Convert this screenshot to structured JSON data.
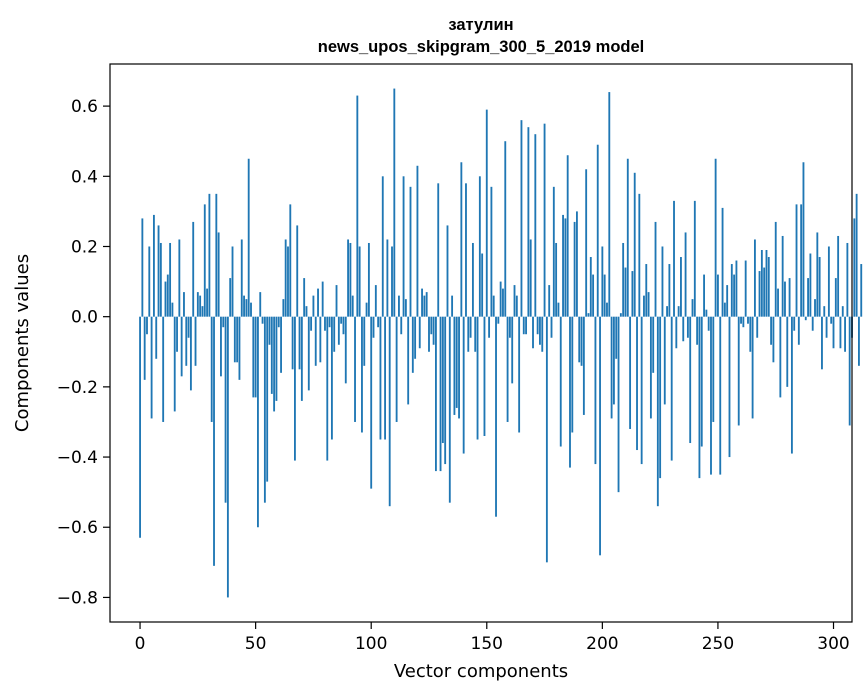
{
  "chart_data": {
    "type": "bar",
    "title_lines": [
      "затулин",
      "news_upos_skipgram_300_5_2019 model"
    ],
    "xlabel": "Vector components",
    "ylabel": "Components values",
    "xlim": [
      -13,
      308
    ],
    "ylim": [
      -0.87,
      0.72
    ],
    "xticks": [
      0,
      50,
      100,
      150,
      200,
      250,
      300
    ],
    "xtick_labels": [
      "0",
      "50",
      "100",
      "150",
      "200",
      "250",
      "300"
    ],
    "yticks": [
      -0.8,
      -0.6,
      -0.4,
      -0.2,
      0.0,
      0.2,
      0.4,
      0.6
    ],
    "ytick_labels": [
      "−0.8",
      "−0.6",
      "−0.4",
      "−0.2",
      "0.0",
      "0.2",
      "0.4",
      "0.6"
    ],
    "bar_color": "#1f77b4",
    "grid": false,
    "values": [
      -0.63,
      0.28,
      -0.18,
      -0.05,
      0.2,
      -0.29,
      0.29,
      -0.12,
      0.26,
      0.21,
      -0.3,
      0.1,
      0.12,
      0.21,
      0.04,
      -0.27,
      -0.1,
      0.22,
      -0.17,
      0.07,
      -0.14,
      -0.06,
      -0.21,
      0.27,
      -0.14,
      0.07,
      0.06,
      0.03,
      0.32,
      0.08,
      0.35,
      -0.3,
      -0.71,
      0.35,
      0.24,
      -0.17,
      -0.03,
      -0.53,
      -0.8,
      0.11,
      0.2,
      -0.13,
      -0.13,
      -0.18,
      0.22,
      0.06,
      0.05,
      0.45,
      0.04,
      -0.23,
      -0.23,
      -0.6,
      0.07,
      -0.02,
      -0.53,
      -0.47,
      -0.08,
      -0.22,
      -0.27,
      -0.24,
      -0.03,
      -0.16,
      0.05,
      0.22,
      0.2,
      0.32,
      -0.15,
      -0.41,
      0.26,
      -0.15,
      -0.24,
      0.11,
      0.03,
      -0.21,
      -0.04,
      0.06,
      -0.14,
      0.08,
      -0.13,
      0.1,
      -0.04,
      -0.41,
      -0.03,
      -0.35,
      -0.1,
      0.09,
      -0.08,
      -0.02,
      -0.05,
      -0.19,
      0.22,
      0.21,
      0.06,
      -0.3,
      0.63,
      0.2,
      -0.33,
      -0.14,
      0.04,
      0.21,
      -0.49,
      -0.06,
      0.09,
      -0.03,
      -0.35,
      0.4,
      -0.35,
      0.22,
      -0.54,
      0.2,
      0.65,
      -0.3,
      0.06,
      -0.05,
      0.4,
      0.05,
      -0.25,
      0.37,
      -0.16,
      -0.12,
      0.43,
      -0.09,
      0.08,
      0.06,
      0.07,
      -0.1,
      -0.05,
      -0.08,
      -0.44,
      0.38,
      -0.44,
      -0.36,
      -0.42,
      0.26,
      -0.53,
      0.06,
      -0.28,
      -0.26,
      -0.29,
      0.44,
      -0.39,
      0.38,
      -0.1,
      -0.06,
      0.21,
      -0.1,
      -0.35,
      0.4,
      0.18,
      -0.34,
      0.59,
      -0.06,
      0.37,
      0.06,
      -0.57,
      -0.02,
      0.1,
      0.08,
      0.5,
      -0.3,
      -0.06,
      -0.19,
      0.09,
      0.06,
      -0.33,
      0.56,
      -0.05,
      -0.05,
      0.54,
      0.22,
      -0.09,
      0.52,
      -0.05,
      -0.08,
      -0.1,
      0.55,
      -0.7,
      0.09,
      -0.06,
      0.37,
      0.21,
      0.04,
      -0.37,
      0.29,
      0.28,
      0.46,
      -0.43,
      -0.33,
      0.27,
      0.3,
      -0.13,
      -0.14,
      -0.28,
      0.42,
      0.01,
      0.17,
      0.12,
      -0.42,
      0.49,
      -0.68,
      0.2,
      0.12,
      0.04,
      0.64,
      -0.29,
      -0.25,
      -0.12,
      -0.5,
      0.01,
      0.21,
      0.14,
      0.45,
      -0.32,
      0.13,
      0.41,
      -0.38,
      0.35,
      -0.42,
      0.06,
      0.15,
      0.07,
      -0.29,
      -0.16,
      0.27,
      -0.54,
      -0.46,
      0.2,
      -0.25,
      0.03,
      0.15,
      -0.41,
      0.33,
      -0.09,
      0.03,
      0.17,
      -0.07,
      0.24,
      -0.06,
      -0.36,
      0.05,
      0.33,
      -0.08,
      -0.46,
      -0.37,
      0.12,
      0.02,
      -0.04,
      -0.45,
      -0.3,
      0.45,
      0.12,
      -0.45,
      0.31,
      0.04,
      0.09,
      -0.4,
      0.15,
      0.12,
      0.16,
      -0.31,
      -0.02,
      -0.03,
      0.16,
      -0.02,
      -0.1,
      -0.29,
      0.22,
      -0.06,
      0.13,
      0.19,
      0.14,
      0.19,
      0.17,
      -0.08,
      -0.13,
      0.27,
      0.08,
      -0.23,
      0.23,
      0.1,
      -0.2,
      0.11,
      -0.39,
      -0.04,
      0.32,
      -0.08,
      0.32,
      0.44,
      -0.01,
      0.11,
      0.18,
      -0.04,
      0.05,
      0.24,
      0.17,
      -0.15,
      0.03,
      -0.06,
      0.2,
      -0.02,
      -0.09,
      0.11,
      0.23,
      -0.09,
      0.03,
      -0.1,
      0.21,
      -0.31,
      -0.06,
      0.28,
      0.35,
      -0.14,
      0.15
    ]
  }
}
